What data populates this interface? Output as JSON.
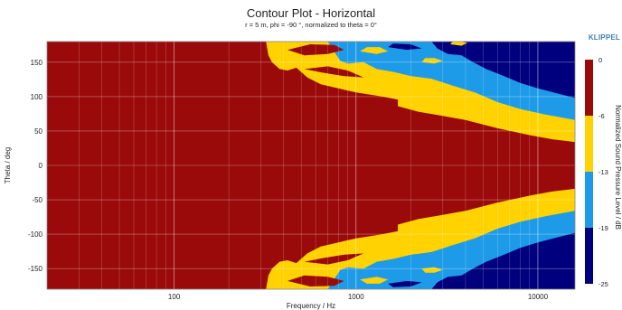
{
  "header": {
    "title": "Contour Plot - Horizontal",
    "subtitle": "r = 5 m, phi = -90 °, normalized to theta = 0°",
    "brand": "KLIPPEL"
  },
  "chart_data": {
    "type": "heatmap",
    "title": "Contour Plot - Horizontal",
    "subtitle": "r = 5 m, phi = -90 °, normalized to theta = 0°",
    "xlabel": "Frequency / Hz",
    "ylabel": "Theta / deg",
    "x_scale": "log",
    "xlim": [
      20,
      16000
    ],
    "ylim": [
      -180,
      180
    ],
    "x_ticks": [
      100,
      1000,
      10000
    ],
    "x_tick_labels": [
      "100",
      "1000",
      "10000"
    ],
    "y_ticks": [
      150,
      100,
      50,
      0,
      -50,
      -100,
      -150
    ],
    "grid": true,
    "colorbar": {
      "label": "Normalized Sound Pressure Level / dB",
      "tick_labels": [
        "0",
        "-6",
        "-13",
        "-19",
        "-25"
      ],
      "levels": [
        {
          "range": [
            -6,
            0
          ],
          "color": "#9b0a0a"
        },
        {
          "range": [
            -13,
            -6
          ],
          "color": "#ffd200"
        },
        {
          "range": [
            -19,
            -13
          ],
          "color": "#1e9be8"
        },
        {
          "range": [
            -25,
            -19
          ],
          "color": "#00007f"
        }
      ]
    },
    "contours": {
      "description_levels": [
        "-6 dB",
        "-13 dB",
        "-19 dB"
      ],
      "minus6_upper_boundary": {
        "x": [
          320,
          400,
          500,
          700,
          1000,
          2000,
          4000,
          8000,
          16000
        ],
        "theta": [
          175,
          130,
          115,
          110,
          100,
          88,
          70,
          52,
          35
        ]
      },
      "minus6_lower_boundary": {
        "x": [
          320,
          400,
          500,
          700,
          1000,
          2000,
          4000,
          8000,
          16000
        ],
        "theta": [
          -175,
          -130,
          -115,
          -110,
          -100,
          -88,
          -70,
          -52,
          -35
        ]
      },
      "minus13_upper_boundary": {
        "x": [
          800,
          1000,
          2000,
          4000,
          8000,
          16000
        ],
        "theta": [
          180,
          150,
          130,
          110,
          75,
          55
        ]
      },
      "minus19_upper_boundary": {
        "x": [
          3000,
          4000,
          8000,
          16000
        ],
        "theta": [
          180,
          165,
          125,
          95
        ]
      }
    }
  }
}
